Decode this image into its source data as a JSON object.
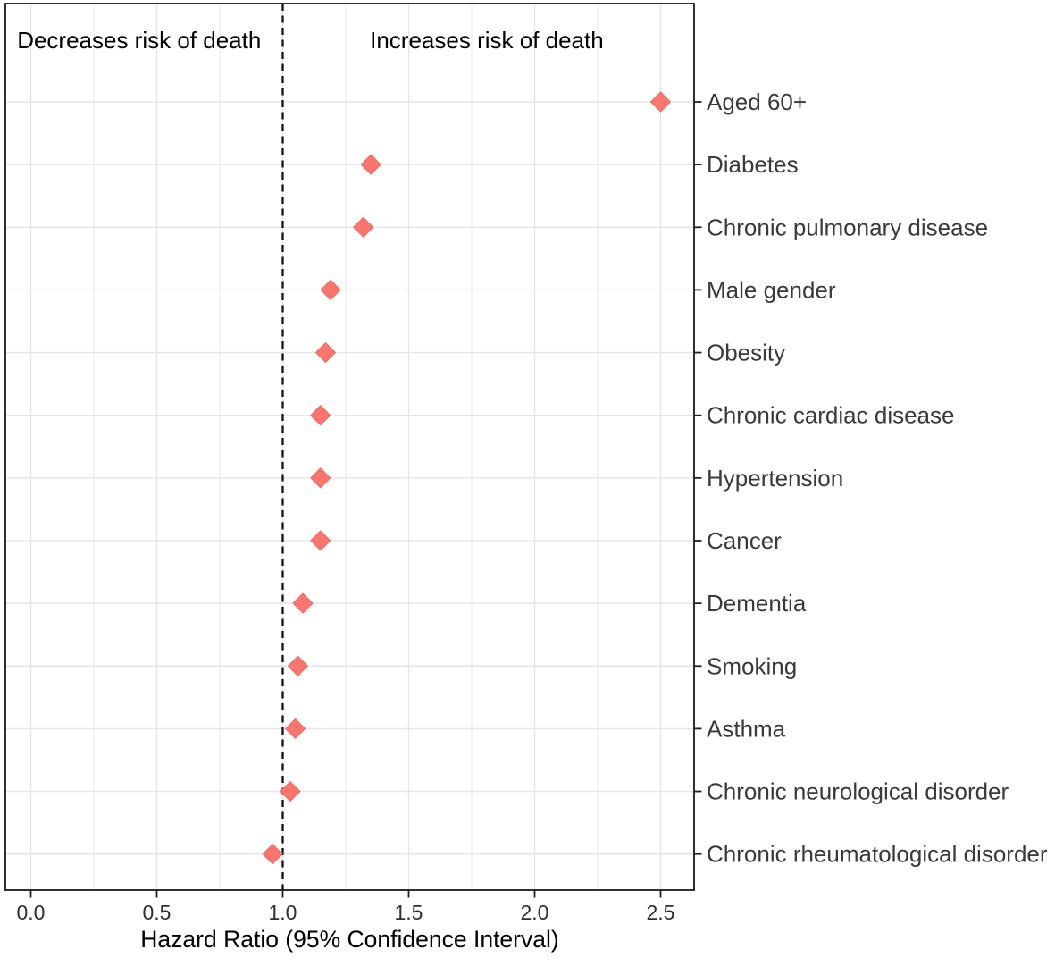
{
  "chart_data": {
    "type": "scatter",
    "title": "",
    "xlabel": "Hazard Ratio (95% Confidence Interval)",
    "ylabel": "",
    "marker": "diamond",
    "marker_color": "#F8766D",
    "grid": "on",
    "legend": "none",
    "xlim": [
      -0.1,
      2.63
    ],
    "x_ticks": [
      {
        "value": 0.0,
        "label": "0.0"
      },
      {
        "value": 0.5,
        "label": "0.5"
      },
      {
        "value": 1.0,
        "label": "1.0"
      },
      {
        "value": 1.5,
        "label": "1.5"
      },
      {
        "value": 2.0,
        "label": "2.0"
      },
      {
        "value": 2.5,
        "label": "2.5"
      }
    ],
    "gridline_step_minor": 0.25,
    "reference_line_x": 1.0,
    "reference_line_style": "dashed",
    "annotations": [
      {
        "text": "Decreases risk of death",
        "x": 0.43
      },
      {
        "text": "Increases risk of death",
        "x": 1.81
      }
    ],
    "categories": [
      "Aged 60+",
      "Diabetes",
      "Chronic pulmonary disease",
      "Male gender",
      "Obesity",
      "Chronic cardiac disease",
      "Hypertension",
      "Cancer",
      "Dementia",
      "Smoking",
      "Asthma",
      "Chronic neurological disorder",
      "Chronic rheumatological disorder"
    ],
    "values": [
      2.5,
      1.35,
      1.32,
      1.19,
      1.17,
      1.15,
      1.15,
      1.15,
      1.08,
      1.06,
      1.05,
      1.03,
      0.96
    ]
  },
  "colors": {
    "marker_fill": "#F8766D",
    "marker_edge": "#F4685E",
    "gridline": "#E5E5E5",
    "panel_border": "#1a1a1a",
    "reference_line": "#111111",
    "tick_mark": "#222222",
    "background": "#FFFFFF"
  }
}
